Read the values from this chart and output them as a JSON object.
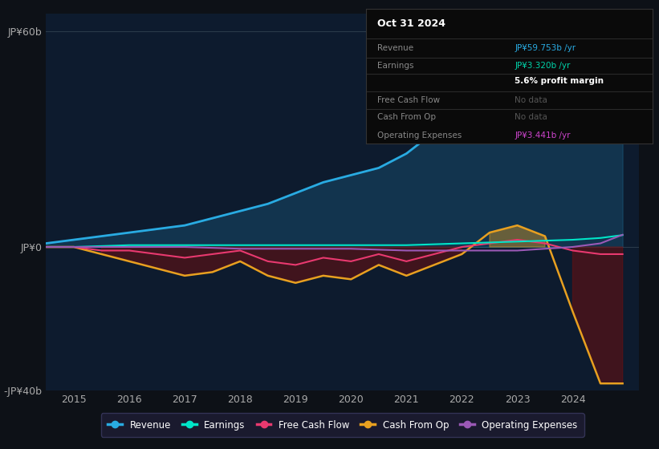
{
  "bg_color": "#0d1117",
  "plot_bg_color": "#0d1b2e",
  "ylim": [
    -40,
    65
  ],
  "yticks": [
    -40,
    0,
    60
  ],
  "ytick_labels": [
    "-JP¥40b",
    "JP¥0",
    "JP¥60b"
  ],
  "xlim": [
    2014.5,
    2025.2
  ],
  "xticks": [
    2015,
    2016,
    2017,
    2018,
    2019,
    2020,
    2021,
    2022,
    2023,
    2024
  ],
  "legend": [
    {
      "label": "Revenue",
      "color": "#29abe2"
    },
    {
      "label": "Earnings",
      "color": "#00e5c8"
    },
    {
      "label": "Free Cash Flow",
      "color": "#e8396f"
    },
    {
      "label": "Cash From Op",
      "color": "#e8a020"
    },
    {
      "label": "Operating Expenses",
      "color": "#9b59b6"
    }
  ],
  "tooltip_date": "Oct 31 2024",
  "tooltip_rows": [
    {
      "label": "Revenue",
      "value": "JP¥59.753b /yr",
      "value_color": "#29abe2",
      "bold": false
    },
    {
      "label": "Earnings",
      "value": "JP¥3.320b /yr",
      "value_color": "#00d4aa",
      "bold": false
    },
    {
      "label": "",
      "value": "5.6% profit margin",
      "value_color": "#ffffff",
      "bold": true
    },
    {
      "label": "Free Cash Flow",
      "value": "No data",
      "value_color": "#555555",
      "bold": false
    },
    {
      "label": "Cash From Op",
      "value": "No data",
      "value_color": "#555555",
      "bold": false
    },
    {
      "label": "Operating Expenses",
      "value": "JP¥3.441b /yr",
      "value_color": "#cc44cc",
      "bold": false
    }
  ],
  "revenue_x": [
    2014.5,
    2015.0,
    2015.5,
    2016.0,
    2016.5,
    2017.0,
    2017.5,
    2018.0,
    2018.5,
    2019.0,
    2019.5,
    2020.0,
    2020.5,
    2021.0,
    2021.5,
    2022.0,
    2022.5,
    2023.0,
    2023.5,
    2024.0,
    2024.3,
    2024.5,
    2024.9
  ],
  "revenue_y": [
    1,
    2,
    3,
    4,
    5,
    6,
    8,
    10,
    12,
    15,
    18,
    20,
    22,
    26,
    32,
    38,
    42,
    45,
    40,
    34,
    35,
    42,
    61
  ],
  "revenue_color": "#29abe2",
  "earnings_x": [
    2014.5,
    2015.0,
    2016.0,
    2017.0,
    2018.0,
    2019.0,
    2020.0,
    2021.0,
    2022.0,
    2023.0,
    2024.0,
    2024.5,
    2024.9
  ],
  "earnings_y": [
    0,
    0,
    0.5,
    0.5,
    0.5,
    0.5,
    0.5,
    0.5,
    1.0,
    1.5,
    2.0,
    2.5,
    3.3
  ],
  "earnings_color": "#00e5c8",
  "cash_from_op_x": [
    2014.5,
    2015.0,
    2015.5,
    2016.0,
    2016.5,
    2017.0,
    2017.5,
    2018.0,
    2018.5,
    2019.0,
    2019.5,
    2020.0,
    2020.5,
    2021.0,
    2021.5,
    2022.0,
    2022.5,
    2023.0,
    2023.5,
    2024.0,
    2024.5,
    2024.9
  ],
  "cash_from_op_y": [
    0,
    0,
    -2,
    -4,
    -6,
    -8,
    -7,
    -4,
    -8,
    -10,
    -8,
    -9,
    -5,
    -8,
    -5,
    -2,
    4,
    6,
    3,
    -18,
    -38,
    -38
  ],
  "cash_from_op_color": "#e8a020",
  "free_cash_flow_x": [
    2014.5,
    2015.0,
    2015.5,
    2016.0,
    2016.5,
    2017.0,
    2017.5,
    2018.0,
    2018.5,
    2019.0,
    2019.5,
    2020.0,
    2020.5,
    2021.0,
    2021.5,
    2022.0,
    2022.5,
    2023.0,
    2023.5,
    2024.0,
    2024.5,
    2024.9
  ],
  "free_cash_flow_y": [
    0,
    0,
    -1,
    -1,
    -2,
    -3,
    -2,
    -1,
    -4,
    -5,
    -3,
    -4,
    -2,
    -4,
    -2,
    0,
    1,
    2,
    1,
    -1,
    -2,
    -2
  ],
  "free_cash_flow_color": "#e8396f",
  "op_expenses_x": [
    2014.5,
    2015.0,
    2016.0,
    2017.0,
    2018.0,
    2019.0,
    2020.0,
    2021.0,
    2022.0,
    2023.0,
    2024.0,
    2024.5,
    2024.9
  ],
  "op_expenses_y": [
    0,
    0,
    0,
    0,
    -0.5,
    -0.5,
    -0.5,
    -1,
    -1,
    -1,
    0,
    1,
    3.4
  ],
  "op_expenses_color": "#9b59b6",
  "fill_neg_color": "#6b1010",
  "fill_pos_color": "#e8a020"
}
